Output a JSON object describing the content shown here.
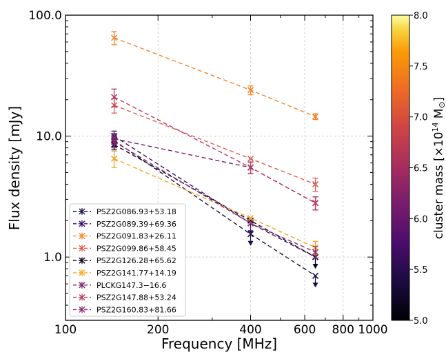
{
  "chart_data": {
    "type": "line",
    "x_scale": "log",
    "y_scale": "log",
    "xlabel": "Frequency [MHz]",
    "ylabel": "Flux density [mJy]",
    "xlim": [
      100,
      1000
    ],
    "ylim": [
      0.3,
      100
    ],
    "x_tick_labels": [
      "100",
      "200",
      "400",
      "600",
      "800",
      "1000"
    ],
    "y_tick_labels": [
      "1.0",
      "10.0",
      "100.0"
    ],
    "grid": true,
    "legend_position": "bottom-left",
    "colorbar": {
      "label": "cluster mass [×10",
      "label_sup": "14",
      "label_end": " M",
      "label_sym": "⊙",
      "label_close": "]",
      "range": [
        5.0,
        8.0
      ],
      "tick_labels": [
        "5.0",
        "5.5",
        "6.0",
        "6.5",
        "7.0",
        "7.5",
        "8.0"
      ]
    },
    "series": [
      {
        "name": "PSZ2G086.93+53.18",
        "color": "#1a1040",
        "x": [
          144,
          400,
          650
        ],
        "y": [
          9.2,
          1.55,
          0.7
        ],
        "err": [
          1.0,
          0.0,
          0.0
        ],
        "upper_limit": [
          false,
          true,
          true
        ]
      },
      {
        "name": "PSZ2G089.39+69.36",
        "color": "#3d0f6e",
        "x": [
          144,
          400,
          650
        ],
        "y": [
          10.0,
          1.9,
          1.0
        ],
        "err": [
          1.0,
          0.0,
          0.0
        ],
        "upper_limit": [
          false,
          true,
          true
        ]
      },
      {
        "name": "PSZ2G091.83+26.11",
        "color": "#f4832b",
        "x": [
          144,
          400,
          650
        ],
        "y": [
          65,
          24,
          14.5
        ],
        "err": [
          8,
          2,
          0.8
        ],
        "upper_limit": [
          false,
          false,
          false
        ]
      },
      {
        "name": "PSZ2G099.86+58.45",
        "color": "#db5c50",
        "x": [
          144,
          400,
          650
        ],
        "y": [
          18,
          6.5,
          4.0
        ],
        "err": [
          2.5,
          0.0,
          0.5
        ],
        "upper_limit": [
          false,
          false,
          false
        ]
      },
      {
        "name": "PSZ2G126.28+65.62",
        "color": "#0b0724",
        "x": [
          144,
          400,
          650
        ],
        "y": [
          8.5,
          2.0,
          1.0
        ],
        "err": [
          0.8,
          0.0,
          0.0
        ],
        "upper_limit": [
          false,
          false,
          true
        ]
      },
      {
        "name": "PSZ2G141.77+14.19",
        "color": "#f7a520",
        "x": [
          144,
          400,
          650
        ],
        "y": [
          6.5,
          2.1,
          1.2
        ],
        "err": [
          1.0,
          0.0,
          0.15
        ],
        "upper_limit": [
          false,
          false,
          false
        ]
      },
      {
        "name": "PLCKG147.3−16.6",
        "color": "#75226e",
        "x": [
          144,
          400,
          650
        ],
        "y": [
          9.5,
          5.5,
          2.8
        ],
        "err": [
          1.0,
          0.6,
          0.35
        ],
        "upper_limit": [
          false,
          false,
          false
        ]
      },
      {
        "name": "PSZ2G147.88+53.24",
        "color": "#b63a5e",
        "x": [
          144,
          400,
          650
        ],
        "y": [
          21,
          5.5,
          2.8
        ],
        "err": [
          3.5,
          0.6,
          0.35
        ],
        "upper_limit": [
          false,
          false,
          false
        ]
      },
      {
        "name": "PSZ2G160.83+81.66",
        "color": "#8c2a6a",
        "x": [
          144,
          400,
          650
        ],
        "y": [
          9.0,
          1.9,
          1.1
        ],
        "err": [
          1.0,
          0.0,
          0.12
        ],
        "upper_limit": [
          false,
          false,
          false
        ]
      }
    ]
  }
}
